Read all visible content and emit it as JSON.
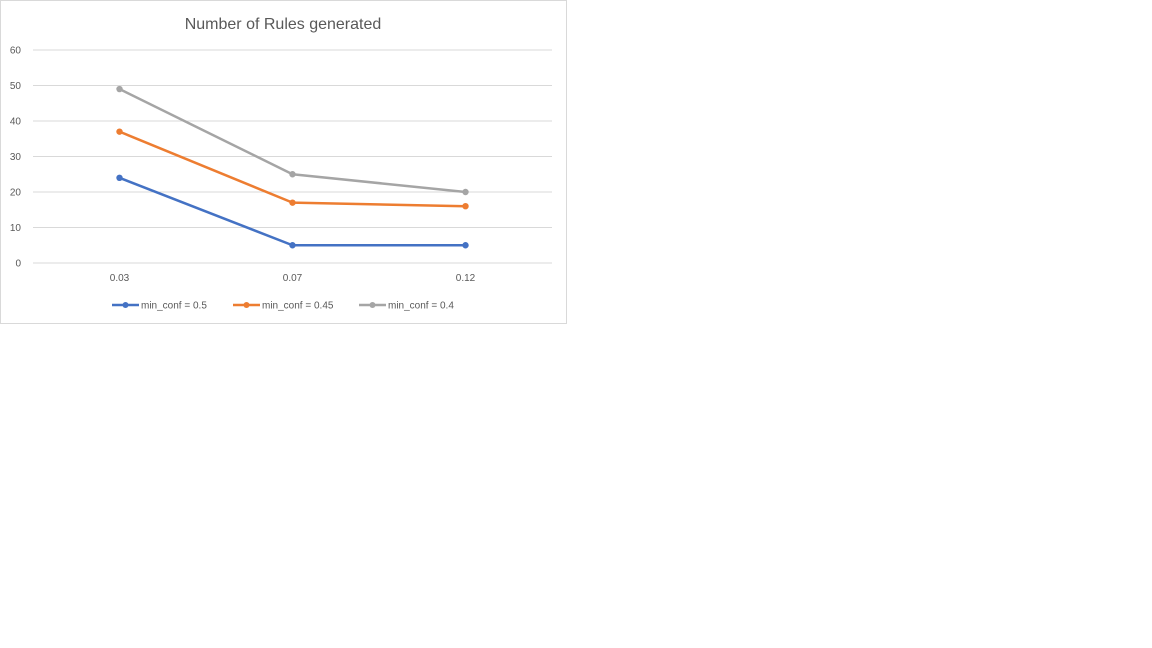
{
  "chart_data": {
    "type": "line",
    "title": "Number of Rules generated",
    "xlabel": "",
    "ylabel": "",
    "categories": [
      "0.03",
      "0.07",
      "0.12"
    ],
    "ylim": [
      0,
      60
    ],
    "yticks": [
      "0",
      "10",
      "20",
      "30",
      "40",
      "50",
      "60"
    ],
    "grid": true,
    "legend_position": "bottom",
    "series": [
      {
        "name": "min_conf = 0.5",
        "values": [
          24,
          5,
          5
        ],
        "color": "#4472c4"
      },
      {
        "name": "min_conf = 0.45",
        "values": [
          37,
          17,
          16
        ],
        "color": "#ed7d31"
      },
      {
        "name": "min_conf = 0.4",
        "values": [
          49,
          25,
          20
        ],
        "color": "#a5a5a5"
      }
    ],
    "gridline_color": "#d9d9d9"
  }
}
